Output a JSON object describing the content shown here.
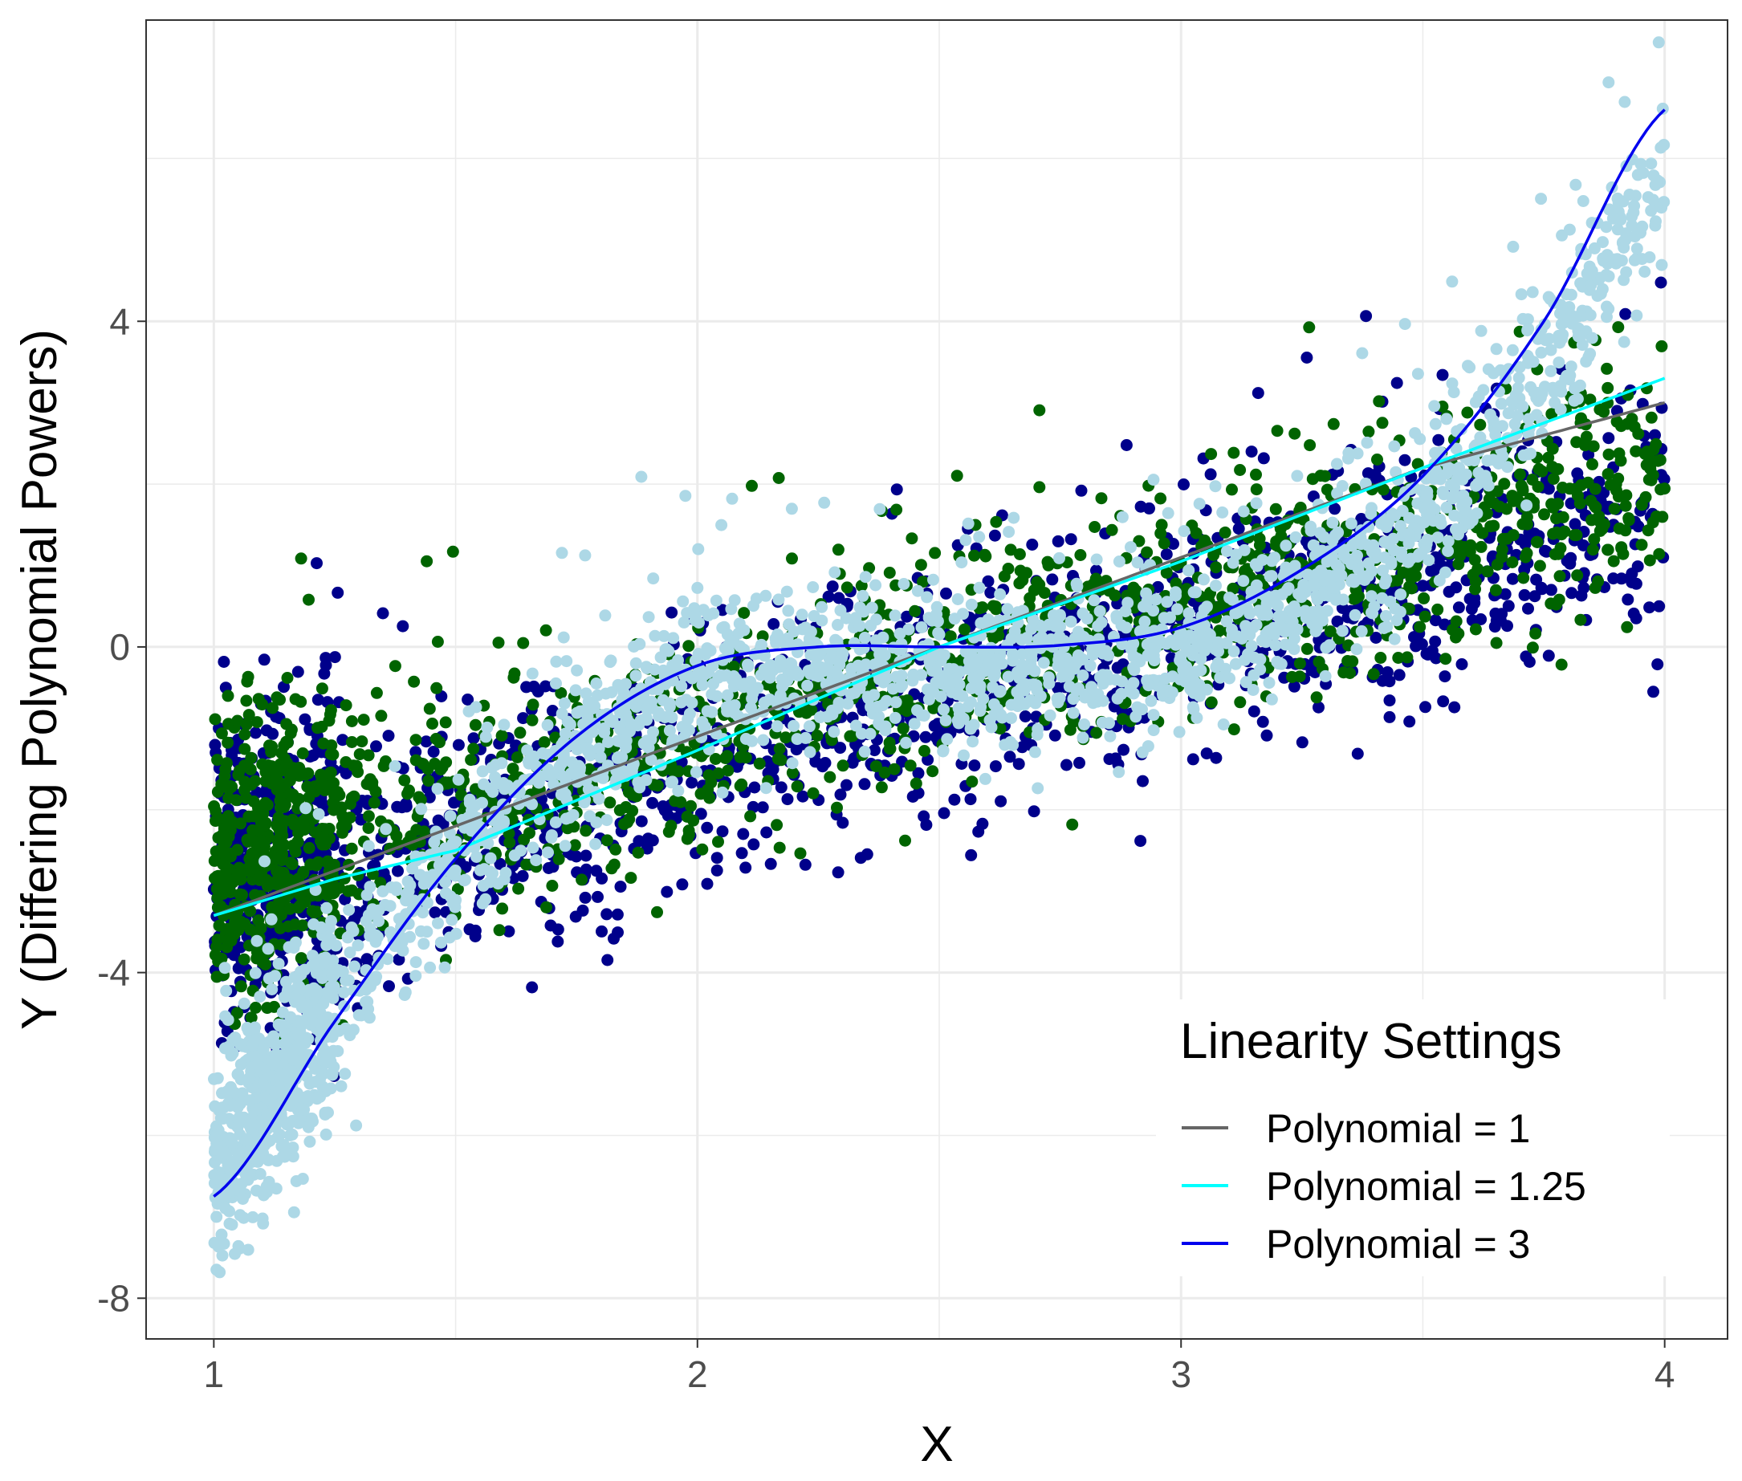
{
  "chart_data": {
    "type": "scatter",
    "xlabel": "X",
    "ylabel": "Y (Differing Polynomial Powers)",
    "xlim": [
      0.86,
      4.13
    ],
    "ylim": [
      -8.5,
      7.7
    ],
    "x_ticks": [
      1,
      2,
      3,
      4
    ],
    "x_tick_labels": [
      "1",
      "2",
      "3",
      "4"
    ],
    "y_ticks": [
      -8,
      -4,
      0,
      4
    ],
    "y_tick_labels": [
      "-8",
      "-4",
      "0",
      "4"
    ],
    "x_minor_ticks": [
      1.5,
      2.5,
      3.5
    ],
    "y_minor_ticks": [
      -6,
      -2,
      2,
      6
    ],
    "grid": true,
    "legend": {
      "title": "Linearity Settings",
      "placement": "bottom-right inside",
      "entries": [
        {
          "label": "Polynomial = 1",
          "color": "#666666"
        },
        {
          "label": "Polynomial = 1.25",
          "color": "#00ffff"
        },
        {
          "label": "Polynomial = 3",
          "color": "#0000ee"
        }
      ]
    },
    "point_series": [
      {
        "color": "#00008b",
        "power": 1
      },
      {
        "color": "#006400",
        "power": 1.25
      },
      {
        "color": "#add8e6",
        "power": 3
      }
    ],
    "fitted_lines": [
      {
        "label": "Polynomial = 1",
        "color": "#666666",
        "x": [
          1.0,
          1.5,
          2.0,
          2.5,
          3.0,
          3.5,
          4.0
        ],
        "y": [
          -3.3,
          -2.2,
          -1.1,
          0.0,
          1.1,
          2.2,
          3.0
        ]
      },
      {
        "label": "Polynomial = 1.25",
        "color": "#00ffff",
        "x": [
          1.0,
          1.25,
          1.5,
          2.0,
          2.5,
          3.0,
          3.5,
          4.0
        ],
        "y": [
          -3.3,
          -2.85,
          -2.5,
          -1.27,
          0.0,
          1.05,
          2.2,
          3.3
        ]
      },
      {
        "label": "Polynomial = 3",
        "color": "#0000ee",
        "x": [
          1.0,
          1.25,
          1.5,
          1.75,
          2.0,
          2.25,
          2.5,
          2.75,
          3.0,
          3.25,
          3.5,
          3.75,
          4.0
        ],
        "y": [
          -6.75,
          -4.6,
          -2.6,
          -1.1,
          -0.23,
          0.0,
          0.0,
          0.02,
          0.24,
          0.95,
          2.1,
          4.0,
          6.6
        ]
      }
    ]
  }
}
